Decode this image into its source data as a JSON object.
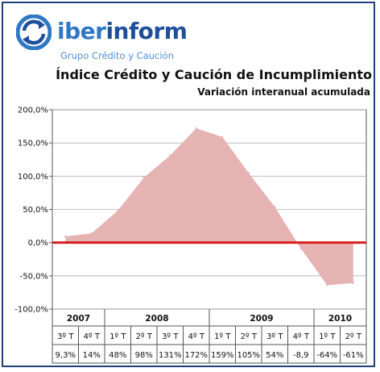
{
  "brand": {
    "name_part1": "iber",
    "name_part2": "inform",
    "tagline": "Grupo Crédito y Caución",
    "primary_color": "#1f4f99",
    "accent_color": "#2f78c4",
    "logo_icon": "circular-arrows-logo-icon"
  },
  "chart_data": {
    "type": "area",
    "title": "Índice Crédito y Caución de Incumplimiento",
    "subtitle": "Variación interanual acumulada",
    "categories": [
      "3º T",
      "4º T",
      "1º T",
      "2º T",
      "3º T",
      "4º T",
      "1º T",
      "2º T",
      "3º T",
      "4º T",
      "1º T",
      "2º T"
    ],
    "years": [
      {
        "label": "2007",
        "span": 2
      },
      {
        "label": "2008",
        "span": 4
      },
      {
        "label": "2009",
        "span": 4
      },
      {
        "label": "2010",
        "span": 2
      }
    ],
    "values": [
      9.3,
      14,
      48,
      98,
      131,
      172,
      159,
      105,
      54,
      -8.9,
      -64,
      -61
    ],
    "value_labels": [
      "9,3%",
      "14%",
      "48%",
      "98%",
      "131%",
      "172%",
      "159%",
      "105%",
      "54%",
      "-8,9",
      "-64%",
      "-61%"
    ],
    "ylim": [
      -100,
      200
    ],
    "yticks": [
      200,
      150,
      100,
      50,
      0,
      -50,
      -100
    ],
    "ytick_labels": [
      "200,0%",
      "150,0%",
      "100,0%",
      "50,0%",
      "0,0%",
      "-50,0%",
      "-100,0%"
    ],
    "grid": true,
    "fill_color": "#e6b3b3",
    "zero_line_color": "#d81e1e"
  }
}
